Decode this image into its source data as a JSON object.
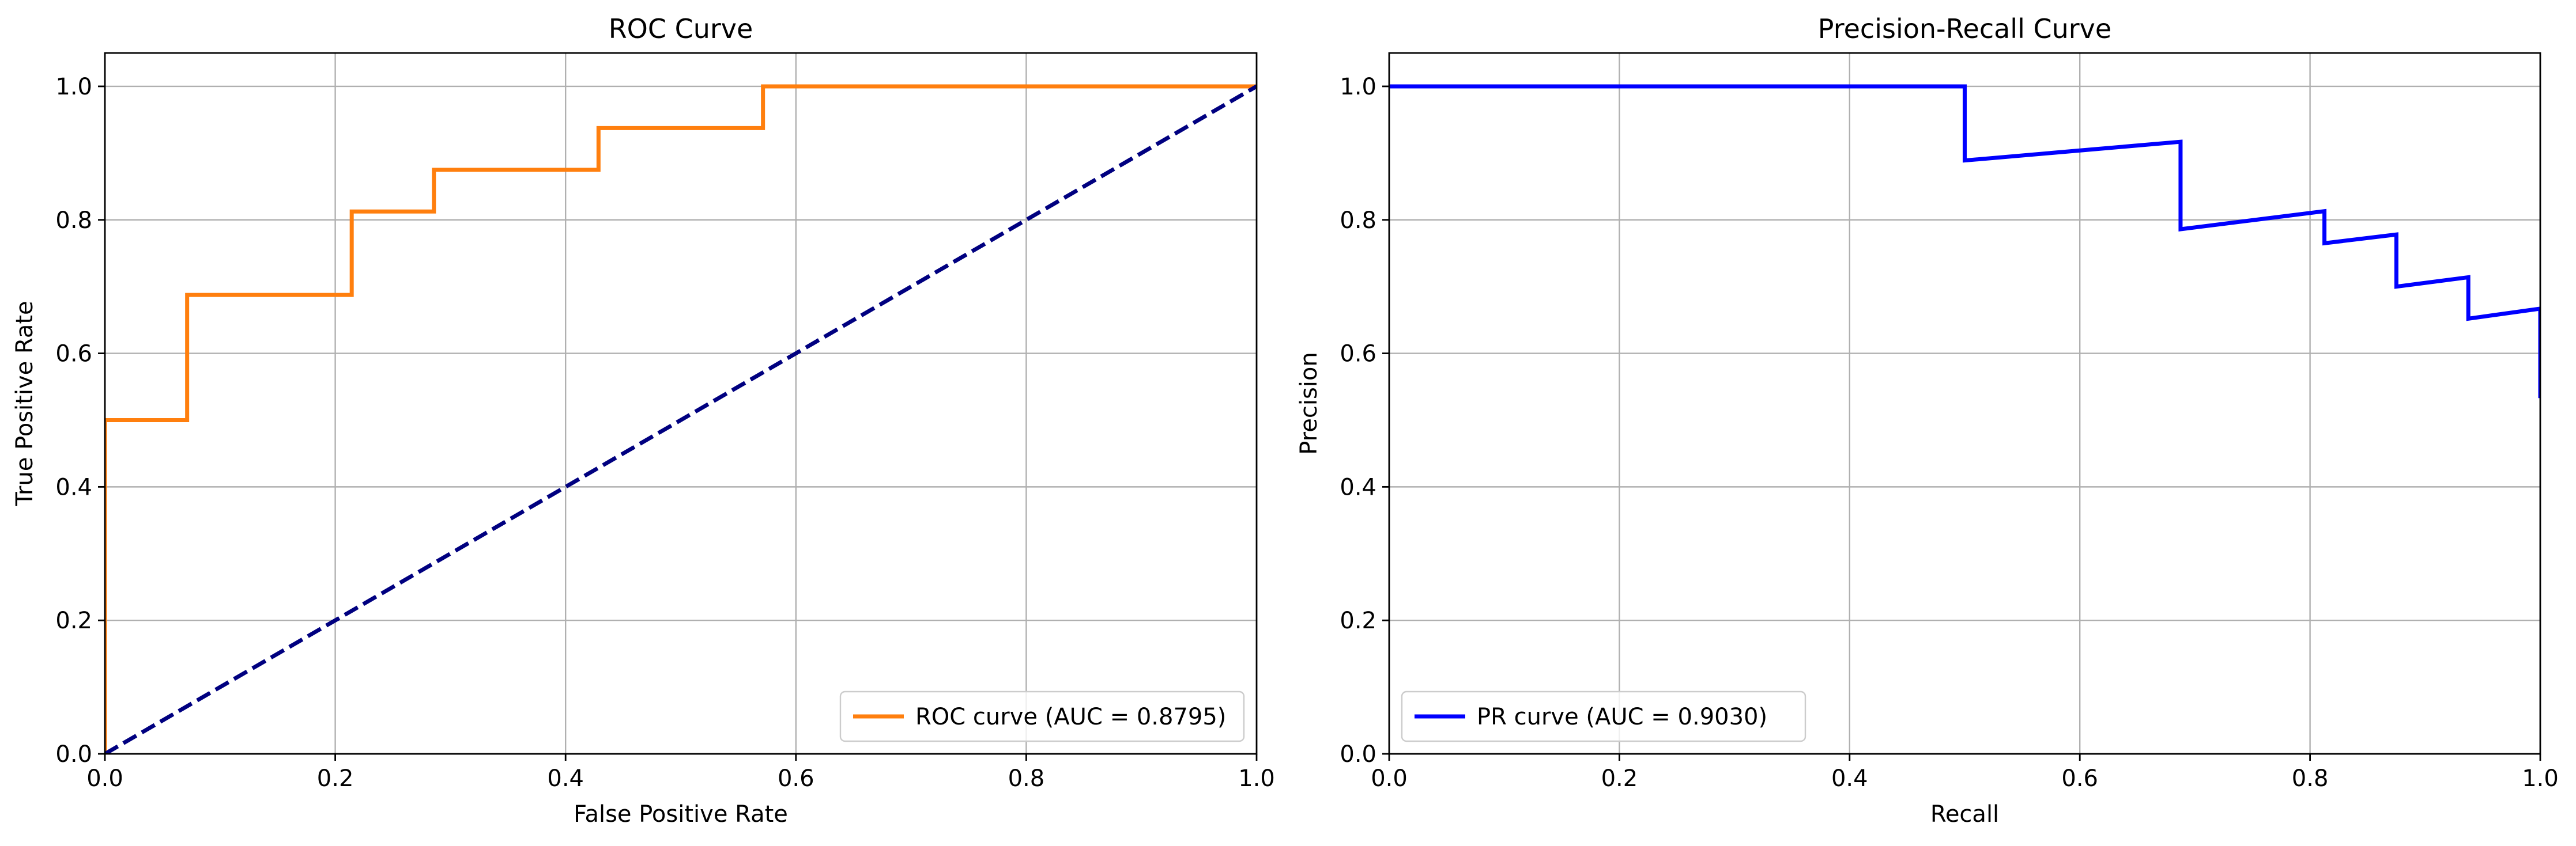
{
  "chart_data": [
    {
      "type": "line",
      "title": "ROC Curve",
      "xlabel": "False Positive Rate",
      "ylabel": "True Positive Rate",
      "xlim": [
        0,
        1
      ],
      "ylim": [
        0,
        1.05
      ],
      "xticks": [
        "0.0",
        "0.2",
        "0.4",
        "0.6",
        "0.8",
        "1.0"
      ],
      "yticks": [
        "0.0",
        "0.2",
        "0.4",
        "0.6",
        "0.8",
        "1.0"
      ],
      "grid": true,
      "legend": "lower-right",
      "series": [
        {
          "name": "ROC curve (AUC = 0.8795)",
          "color": "#ff7f0e",
          "line": "solid",
          "x": [
            0,
            0,
            0,
            0.0714,
            0.0714,
            0.2143,
            0.2143,
            0.2857,
            0.2857,
            0.4286,
            0.4286,
            0.5714,
            0.5714,
            1.0
          ],
          "y": [
            0,
            0.5,
            0.5,
            0.5,
            0.6875,
            0.6875,
            0.8125,
            0.8125,
            0.875,
            0.875,
            0.9375,
            0.9375,
            1.0,
            1.0
          ]
        },
        {
          "name": "",
          "color": "#000080",
          "line": "dashed",
          "x": [
            0,
            1
          ],
          "y": [
            0,
            1
          ]
        }
      ]
    },
    {
      "type": "line",
      "title": "Precision-Recall Curve",
      "xlabel": "Recall",
      "ylabel": "Precision",
      "xlim": [
        0,
        1
      ],
      "ylim": [
        0,
        1.05
      ],
      "xticks": [
        "0.0",
        "0.2",
        "0.4",
        "0.6",
        "0.8",
        "1.0"
      ],
      "yticks": [
        "0.0",
        "0.2",
        "0.4",
        "0.6",
        "0.8",
        "1.0"
      ],
      "grid": true,
      "legend": "lower-left",
      "series": [
        {
          "name": "PR curve (AUC = 0.9030)",
          "color": "#0000ff",
          "line": "solid",
          "x": [
            0.0,
            0.5,
            0.5,
            0.6875,
            0.6875,
            0.8125,
            0.8125,
            0.875,
            0.875,
            0.9375,
            0.9375,
            1.0,
            1.0
          ],
          "y": [
            1.0,
            1.0,
            0.889,
            0.917,
            0.786,
            0.813,
            0.765,
            0.778,
            0.7,
            0.714,
            0.652,
            0.667,
            0.533
          ]
        }
      ]
    }
  ]
}
